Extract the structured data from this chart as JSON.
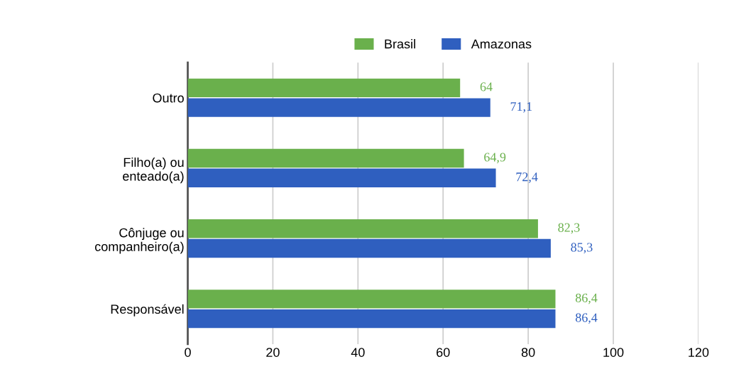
{
  "chart_data": {
    "type": "bar",
    "orientation": "horizontal",
    "categories": [
      "Outro",
      "Filho(a) ou\nenteado(a)",
      "Cônjuge ou\ncompanheiro(a)",
      "Responsável"
    ],
    "series": [
      {
        "name": "Brasil",
        "color": "#6ab04c",
        "values": [
          64,
          64.9,
          82.3,
          86.4
        ],
        "value_labels": [
          "64",
          "64,9",
          "82,3",
          "86,4"
        ]
      },
      {
        "name": "Amazonas",
        "color": "#2f5fbf",
        "values": [
          71.1,
          72.4,
          85.3,
          86.4
        ],
        "value_labels": [
          "71,1",
          "72,4",
          "85,3",
          "86,4"
        ]
      }
    ],
    "xlim": [
      0,
      120
    ],
    "xticks": [
      0,
      20,
      40,
      60,
      80,
      100,
      120
    ],
    "grid": "x",
    "legend": "top"
  }
}
